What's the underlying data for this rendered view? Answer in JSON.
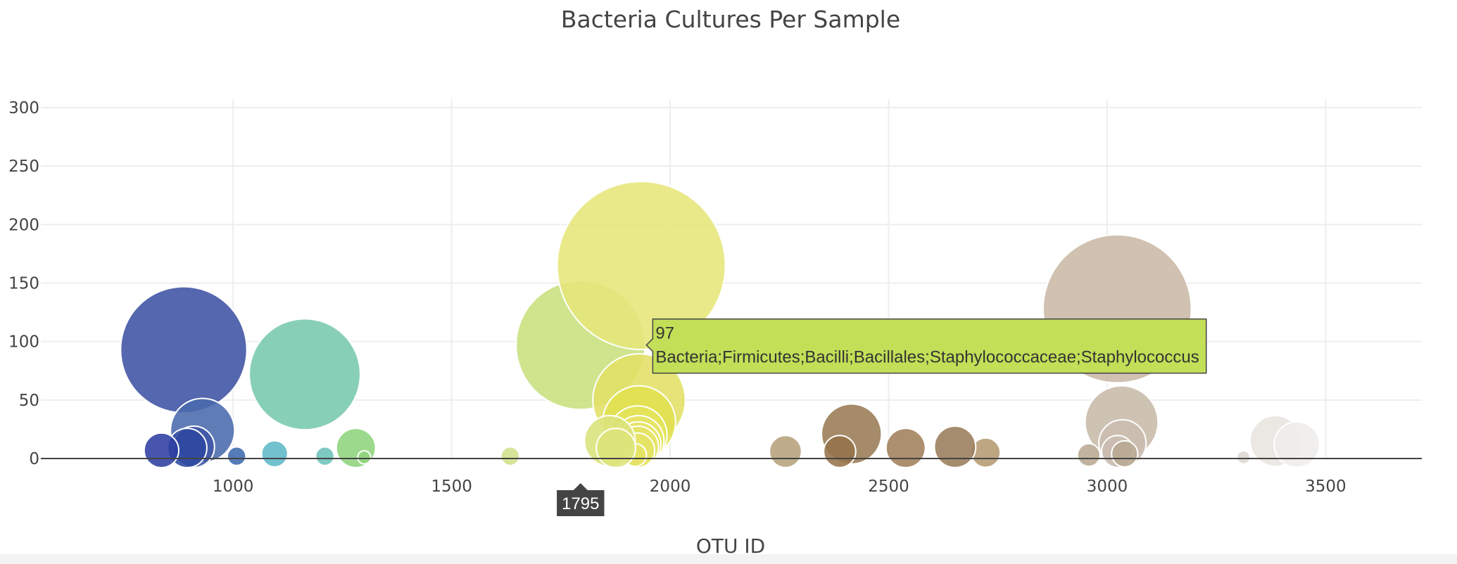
{
  "chart_data": {
    "type": "scatter",
    "title": "Bacteria Cultures Per Sample",
    "xlabel": "OTU ID",
    "ylabel": "",
    "xlim": [
      560,
      3720
    ],
    "ylim": [
      0,
      300
    ],
    "x_ticks": [
      1000,
      1500,
      2000,
      2500,
      3000,
      3500
    ],
    "y_ticks": [
      0,
      50,
      100,
      150,
      200,
      250,
      300
    ],
    "grid": true,
    "legend": "none",
    "series": [
      {
        "points": [
          {
            "otu_id": 2264,
            "value": 6,
            "color": "#b5a07a"
          },
          {
            "otu_id": 3385,
            "value": 15,
            "color": "#e8e4df"
          },
          {
            "otu_id": 3434,
            "value": 12,
            "color": "#efedea"
          },
          {
            "otu_id": 2722,
            "value": 5,
            "color": "#b59a72"
          },
          {
            "otu_id": 1795,
            "value": 97,
            "color": "#c8e07d"
          },
          {
            "otu_id": 1929,
            "value": 50,
            "color": "#e2e066"
          },
          {
            "otu_id": 1934,
            "value": 165,
            "color": "#e6e67a"
          },
          {
            "otu_id": 3023,
            "value": 128,
            "color": "#c9b8a5"
          },
          {
            "otu_id": 3033,
            "value": 31,
            "color": "#c7b9a9"
          },
          {
            "otu_id": 3035,
            "value": 13,
            "color": "#cbbdb0"
          },
          {
            "otu_id": 3024,
            "value": 6,
            "color": "#cbbdb0"
          },
          {
            "otu_id": 3040,
            "value": 4,
            "color": "#b8a892"
          },
          {
            "otu_id": 2958,
            "value": 3,
            "color": "#b8a892"
          },
          {
            "otu_id": 2415,
            "value": 21,
            "color": "#9a7b55"
          },
          {
            "otu_id": 2388,
            "value": 6,
            "color": "#95734a"
          },
          {
            "otu_id": 2539,
            "value": 9,
            "color": "#a0805a"
          },
          {
            "otu_id": 2652,
            "value": 10,
            "color": "#9a7c5a"
          },
          {
            "otu_id": 1929,
            "value": 31,
            "color": "#e1e04e"
          },
          {
            "otu_id": 1926,
            "value": 20,
            "color": "#e4e45c"
          },
          {
            "otu_id": 1928,
            "value": 15,
            "color": "#e6e468"
          },
          {
            "otu_id": 1927,
            "value": 12,
            "color": "#e6e468"
          },
          {
            "otu_id": 1926,
            "value": 10,
            "color": "#e6e468"
          },
          {
            "otu_id": 1925,
            "value": 7,
            "color": "#e6e468"
          },
          {
            "otu_id": 1920,
            "value": 3,
            "color": "#e6e468"
          },
          {
            "otu_id": 1862,
            "value": 15,
            "color": "#d9e27a"
          },
          {
            "otu_id": 1876,
            "value": 9,
            "color": "#dde47a"
          },
          {
            "otu_id": 1634,
            "value": 2,
            "color": "#cfe08a"
          },
          {
            "otu_id": 1281,
            "value": 9,
            "color": "#8ed47c"
          },
          {
            "otu_id": 1164,
            "value": 72,
            "color": "#77c8ae"
          },
          {
            "otu_id": 1095,
            "value": 4,
            "color": "#5fb8c8"
          },
          {
            "otu_id": 1210,
            "value": 2,
            "color": "#6cc2b8"
          },
          {
            "otu_id": 887,
            "value": 93,
            "color": "#3d52a3"
          },
          {
            "otu_id": 930,
            "value": 24,
            "color": "#4a6aad"
          },
          {
            "otu_id": 910,
            "value": 10,
            "color": "#3f55a6"
          },
          {
            "otu_id": 895,
            "value": 9,
            "color": "#2e48a0"
          },
          {
            "otu_id": 836,
            "value": 7,
            "color": "#2e3fa0"
          },
          {
            "otu_id": 1008,
            "value": 2,
            "color": "#3d6aad"
          },
          {
            "otu_id": 3312,
            "value": 1,
            "color": "#dcd6cf"
          },
          {
            "otu_id": 1300,
            "value": 1,
            "color": "#8ed47c"
          }
        ]
      }
    ],
    "hover": {
      "value": "97",
      "label": "Bacteria;Firmicutes;Bacilli;Bacillales;Staphylococcaceae;Staphylococcus",
      "x_value": "1795",
      "color": "#c2df57"
    }
  }
}
